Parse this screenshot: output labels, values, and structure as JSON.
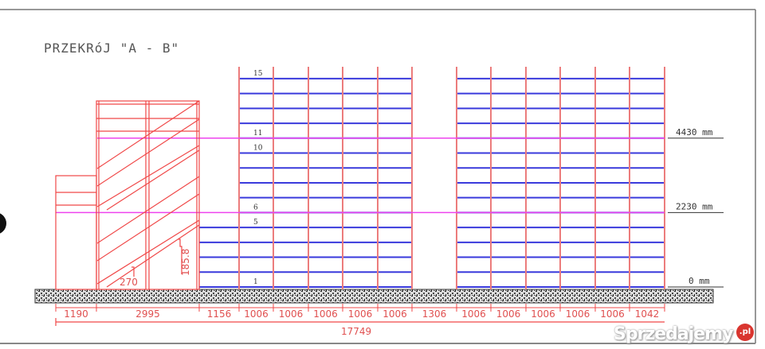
{
  "title": "PRZEKRóJ \"A - B\"",
  "levels": [
    {
      "label": "1",
      "level": 1
    },
    {
      "label": "5",
      "level": 5
    },
    {
      "label": "6",
      "level": 6
    },
    {
      "label": "10",
      "level": 10
    },
    {
      "label": "11",
      "level": 11
    },
    {
      "label": "15",
      "level": 15
    }
  ],
  "elevations": [
    {
      "label": "4430 mm",
      "level": 11
    },
    {
      "label": "2230 mm",
      "level": 6
    },
    {
      "label": "0 mm",
      "level": 1
    }
  ],
  "dimensions": [
    "1190",
    "2995",
    "1156",
    "1006",
    "1006",
    "1006",
    "1006",
    "1006",
    "1306",
    "1006",
    "1006",
    "1006",
    "1006",
    "1006",
    "1042"
  ],
  "total_length": "17749",
  "stair": {
    "tread": "270",
    "rise": "185.8"
  },
  "watermark": {
    "text": "Sprzedajemy",
    "badge": ".pl"
  },
  "colors": {
    "frame": "#f04848",
    "deck": "#3a3adc",
    "datum": "#ee44ee",
    "ground": "#555555"
  }
}
